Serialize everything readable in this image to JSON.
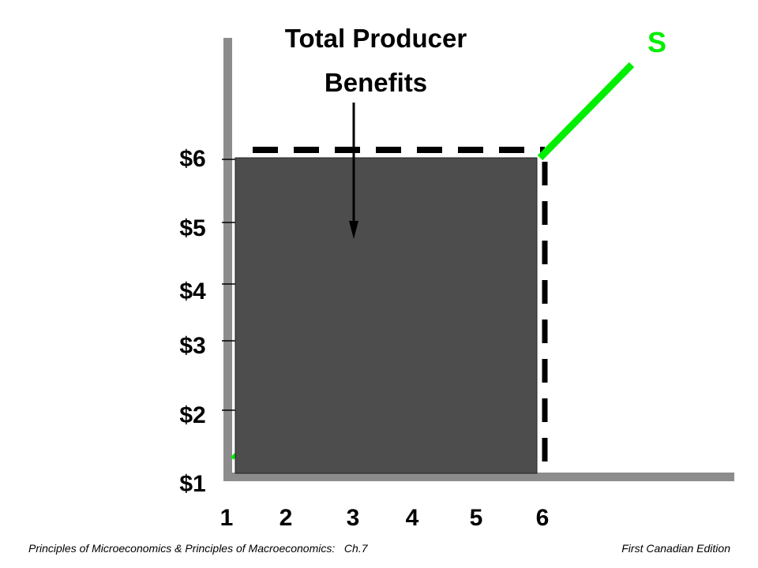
{
  "title": [
    "Total Producer",
    "Benefits"
  ],
  "curve_label": "S",
  "y_axis_labels": [
    "$1",
    "$2",
    "$3",
    "$4",
    "$5",
    "$6"
  ],
  "x_axis_labels": [
    "1",
    "2",
    "3",
    "4",
    "5",
    "6"
  ],
  "footer": {
    "left": "Principles of Microeconomics & Principles of Macroeconomics:   Ch.7",
    "right": "First Canadian Edition"
  }
}
